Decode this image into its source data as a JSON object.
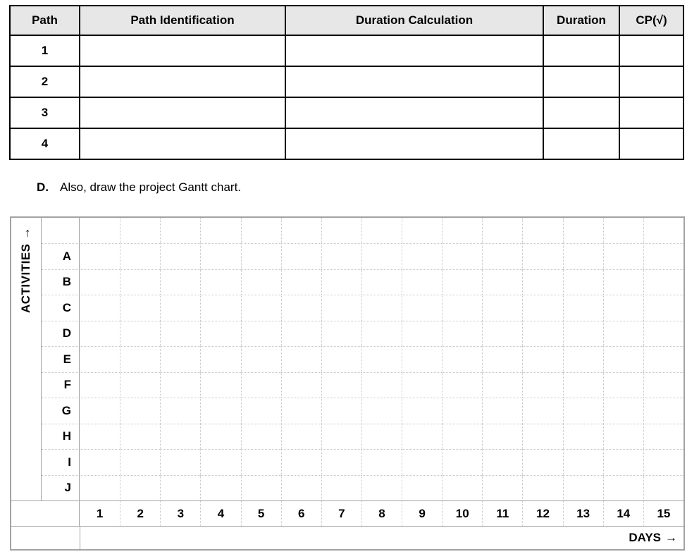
{
  "paths_table": {
    "headers": [
      "Path",
      "Path Identification",
      "Duration Calculation",
      "Duration",
      "CP(√)"
    ],
    "row_labels": [
      "1",
      "2",
      "3",
      "4"
    ]
  },
  "instruction": {
    "label": "D.",
    "text": "Also, draw the project Gantt chart."
  },
  "gantt": {
    "y_axis_label": "ACTIVITIES",
    "y_axis_arrow": "→",
    "x_axis_label": "DAYS",
    "x_axis_arrow": "→",
    "activities": [
      "A",
      "B",
      "C",
      "D",
      "E",
      "F",
      "G",
      "H",
      "I",
      "J"
    ],
    "days": [
      "1",
      "2",
      "3",
      "4",
      "5",
      "6",
      "7",
      "8",
      "9",
      "10",
      "11",
      "12",
      "13",
      "14",
      "15"
    ]
  },
  "colors": {
    "table_border": "#000000",
    "header_background": "#e7e7e7",
    "grid_solid_line": "#a3a3a3",
    "grid_dotted_line": "#c6c6c6"
  }
}
